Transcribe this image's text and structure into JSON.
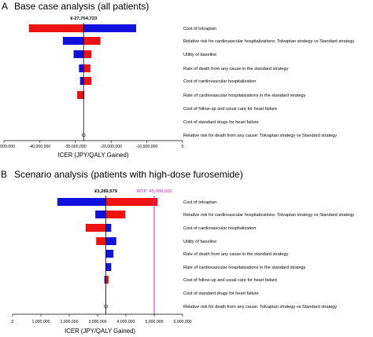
{
  "chart_data": [
    {
      "type": "bar",
      "panel_letter": "A",
      "title": "Base case analysis (all patients)",
      "xlabel": "ICER (JPY/QALY Gained)",
      "xlim": [
        -50000000,
        0
      ],
      "xticks": [
        "-50,000,000",
        "-40,000,000",
        "-30,000,000",
        "-20,000,000",
        "-10,000,000",
        "0"
      ],
      "base_value": -27704723,
      "base_label": "¥-27,704,723",
      "categories": [
        "Cost of tolvaptan",
        "Relative risk for cardiovascular hospitalizations: Tolvaptan strategy vs Standard strategy",
        "Utility of baseline",
        "Rate of death from any cause in the standard strategy",
        "Cost of cardiovascular hospitalization",
        "Rate of cardiovascular hospitalizations in the standard strategy",
        "Cost of follow-up and usual care for heart failure",
        "Cost of standard drugs for heart failure",
        "Relative risk for death from any cause: Tolvaptan strategy vs Standard strategy"
      ],
      "series": [
        {
          "color": "#ee1111",
          "values": [
            [
              -43000000,
              -27704723
            ],
            [
              -27704723,
              -23000000
            ],
            [
              -27704723,
              -25500000
            ],
            [
              -27704723,
              -25800000
            ],
            [
              -27704723,
              -25500000
            ],
            [
              -29500000,
              -27704723
            ],
            [
              -27704723,
              -27704723
            ],
            [
              -27704723,
              -27704723
            ],
            [
              -27704723,
              -27704723
            ]
          ]
        },
        {
          "color": "#1111dd",
          "values": [
            [
              -27704723,
              -13000000
            ],
            [
              -33500000,
              -27704723
            ],
            [
              -30500000,
              -27704723
            ],
            [
              -29000000,
              -27704723
            ],
            [
              -28700000,
              -27704723
            ],
            [
              -27704723,
              -27500000
            ],
            [
              -27704723,
              -27704723
            ],
            [
              -27704723,
              -27704723
            ],
            [
              -27704723,
              -27704723
            ]
          ]
        }
      ]
    },
    {
      "type": "bar",
      "panel_letter": "B",
      "title": "Scenario analysis (patients with high-dose furosemide)",
      "xlabel": "ICER (JPY/QALY Gained)",
      "xlim": [
        0,
        6000000
      ],
      "xticks": [
        "0",
        "1,000,000",
        "2,000,000",
        "3,000,000",
        "4,000,000",
        "5,000,000",
        "6,000,000"
      ],
      "base_value": 3289579,
      "base_label": "¥3,289,579",
      "wtp_value": 5000000,
      "wtp_label": "WTP: ¥5,000,000",
      "wtp_color": "#cc22cc",
      "categories": [
        "Cost of tolvaptan",
        "Relative risk for cardiovascular hospitalizations: Tolvaptan strategy vs Standard strategy",
        "Cost of cardiovascular hospitalization",
        "Utility of baseline",
        "Rate of death from any cause in the standard strategy",
        "Rate of cardiovascular hospitalizations in the standard strategy",
        "Cost of follow-up and usual care for heart failure",
        "Cost of standard drugs for heart failure",
        "Relative risk for death from any cause: Tolvaptan strategy vs Standard strategy"
      ],
      "series": [
        {
          "color": "#ee1111",
          "values": [
            [
              3289579,
              5120000
            ],
            [
              3289579,
              3980000
            ],
            [
              2580000,
              3289579
            ],
            [
              2950000,
              3289579
            ],
            [
              3289579,
              3289579
            ],
            [
              3289579,
              3289579
            ],
            [
              3289579,
              3390000
            ],
            [
              3289579,
              3289579
            ],
            [
              3289579,
              3289579
            ]
          ]
        },
        {
          "color": "#1111dd",
          "values": [
            [
              1580000,
              3289579
            ],
            [
              2920000,
              3289579
            ],
            [
              3289579,
              3480000
            ],
            [
              3289579,
              3660000
            ],
            [
              3289579,
              3560000
            ],
            [
              3289579,
              3480000
            ],
            [
              3240000,
              3289579
            ],
            [
              3289579,
              3289579
            ],
            [
              3289579,
              3289579
            ]
          ]
        }
      ]
    }
  ]
}
